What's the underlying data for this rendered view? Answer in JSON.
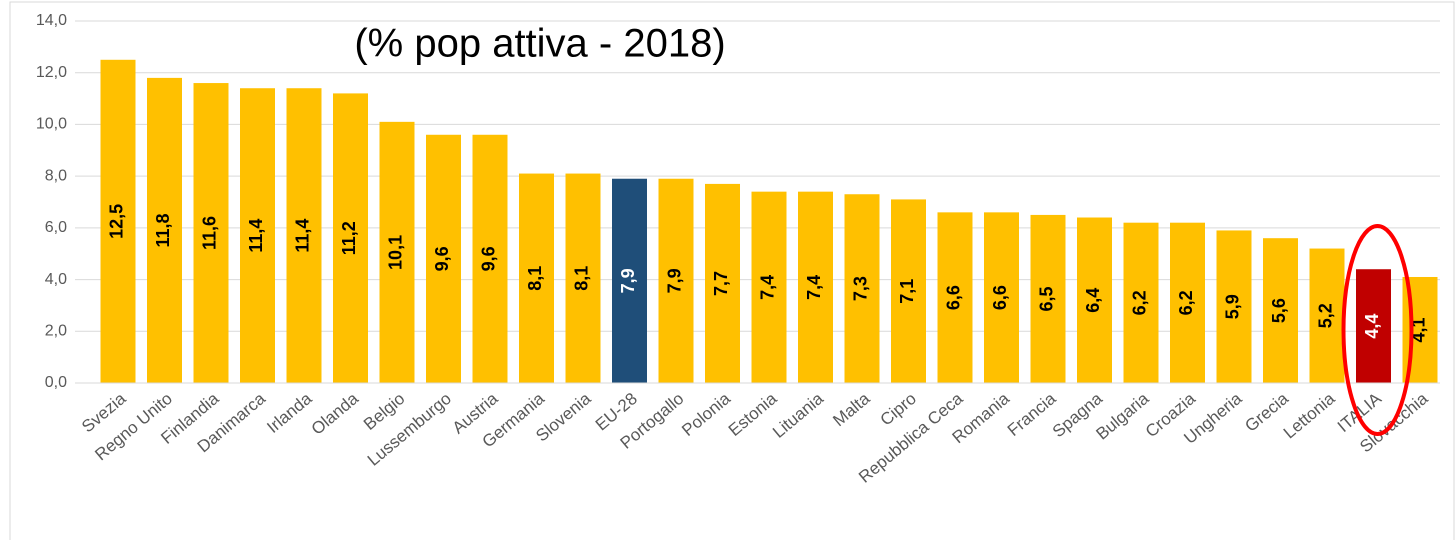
{
  "chart_data": {
    "type": "bar",
    "title": "(% pop attiva - 2018)",
    "categories": [
      "Svezia",
      "Regno Unito",
      "Finlandia",
      "Danimarca",
      "Irlanda",
      "Olanda",
      "Belgio",
      "Lussemburgo",
      "Austria",
      "Germania",
      "Slovenia",
      "EU-28",
      "Portogallo",
      "Polonia",
      "Estonia",
      "Lituania",
      "Malta",
      "Cipro",
      "Repubblica Ceca",
      "Romania",
      "Francia",
      "Spagna",
      "Bulgaria",
      "Croazia",
      "Ungheria",
      "Grecia",
      "Lettonia",
      "ITALIA",
      "Slovacchia"
    ],
    "values": [
      12.5,
      11.8,
      11.6,
      11.4,
      11.4,
      11.2,
      10.1,
      9.6,
      9.6,
      8.1,
      8.1,
      7.9,
      7.9,
      7.7,
      7.4,
      7.4,
      7.3,
      7.1,
      6.6,
      6.6,
      6.5,
      6.4,
      6.2,
      6.2,
      5.9,
      5.6,
      5.2,
      4.4,
      4.1
    ],
    "value_labels": [
      "12,5",
      "11,8",
      "11,6",
      "11,4",
      "11,4",
      "11,2",
      "10,1",
      "9,6",
      "9,6",
      "8,1",
      "8,1",
      "7,9",
      "7,9",
      "7,7",
      "7,4",
      "7,4",
      "7,3",
      "7,1",
      "6,6",
      "6,6",
      "6,5",
      "6,4",
      "6,2",
      "6,2",
      "5,9",
      "5,6",
      "5,2",
      "4,4",
      "4,1"
    ],
    "colors": [
      "#FFC000",
      "#FFC000",
      "#FFC000",
      "#FFC000",
      "#FFC000",
      "#FFC000",
      "#FFC000",
      "#FFC000",
      "#FFC000",
      "#FFC000",
      "#FFC000",
      "#1F4E79",
      "#FFC000",
      "#FFC000",
      "#FFC000",
      "#FFC000",
      "#FFC000",
      "#FFC000",
      "#FFC000",
      "#FFC000",
      "#FFC000",
      "#FFC000",
      "#FFC000",
      "#FFC000",
      "#FFC000",
      "#FFC000",
      "#FFC000",
      "#C00000",
      "#FFC000"
    ],
    "ylim": [
      0,
      14
    ],
    "yticks": [
      {
        "value": 0,
        "label": "0,0"
      },
      {
        "value": 2,
        "label": "2,0"
      },
      {
        "value": 4,
        "label": "4,0"
      },
      {
        "value": 6,
        "label": "6,0"
      },
      {
        "value": 8,
        "label": "8,0"
      },
      {
        "value": 10,
        "label": "10,0"
      },
      {
        "value": 12,
        "label": "12,0"
      },
      {
        "value": 14,
        "label": "14,0"
      }
    ],
    "grid": true
  }
}
